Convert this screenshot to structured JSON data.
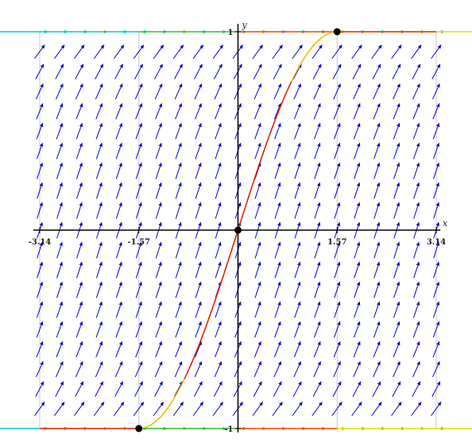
{
  "chart_data": {
    "type": "line",
    "title": "",
    "xlabel": "x",
    "ylabel": "y",
    "xlim": [
      -3.14,
      3.14
    ],
    "ylim": [
      -1,
      1
    ],
    "x_ticks": [
      "-3.14",
      "-1.57",
      "1.57",
      "3.14"
    ],
    "y_ticks": [
      "1",
      "-1"
    ],
    "grid": true,
    "series": [
      {
        "x": [
          -3.14,
          -2.5,
          -2.0,
          -1.57,
          -1.2,
          -0.8,
          -0.4,
          0,
          0.4,
          0.8,
          1.2,
          1.57,
          2.0,
          2.5,
          3.14
        ],
        "y": [
          -1,
          -1,
          -1,
          -1,
          -0.93,
          -0.72,
          -0.39,
          0,
          0.39,
          0.72,
          0.93,
          1,
          1,
          1,
          1
        ]
      }
    ],
    "marked_points": [
      {
        "x": -1.57,
        "y": -1
      },
      {
        "x": 0,
        "y": 0
      },
      {
        "x": 1.57,
        "y": 1
      }
    ],
    "direction_field": {
      "x_range": [
        -3.14,
        3.14
      ],
      "y_range": [
        -1,
        1
      ],
      "columns": 21,
      "rows": 21
    },
    "colors": {
      "field_arrows": "#0000cc",
      "axes": "#000000",
      "grid": "#c8c8c8",
      "curve_inner": "#dd2200",
      "curve_outer": "#f5b800"
    }
  }
}
